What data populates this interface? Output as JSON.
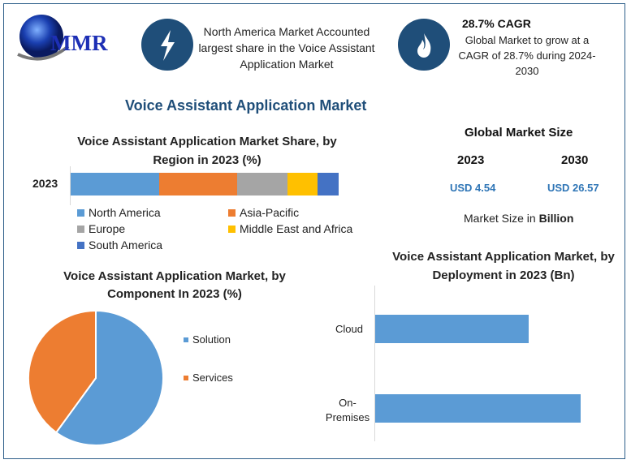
{
  "logo": {
    "text": "MMR"
  },
  "header": {
    "north_america_text": "North America Market Accounted largest share in the Voice Assistant Application Market",
    "cagr_title": "28.7% CAGR",
    "cagr_text": "Global Market to grow at a CAGR of 28.7% during 2024-2030",
    "icons": [
      "lightning-icon",
      "flame-icon"
    ]
  },
  "main_title": "Voice Assistant Application Market",
  "market_size": {
    "title": "Global Market Size",
    "year1": "2023",
    "year2": "2030",
    "value1": "USD 4.54",
    "value2": "USD 26.57",
    "note_prefix": "Market Size in ",
    "note_unit": "Billion"
  },
  "colors": {
    "accent": "#1f4e79",
    "value": "#2e75b6",
    "blue": "#5b9bd5",
    "orange": "#ed7d31",
    "gray": "#a5a5a5",
    "yellow": "#ffc000",
    "darkblue": "#4472c4"
  },
  "chart_data": [
    {
      "type": "bar",
      "orientation": "horizontal-stacked",
      "title": "Voice Assistant Application Market Share, by Region in 2023 (%)",
      "categories": [
        "2023"
      ],
      "series": [
        {
          "name": "North America",
          "values": [
            33
          ],
          "color": "#5b9bd5"
        },
        {
          "name": "Asia-Pacific",
          "values": [
            29
          ],
          "color": "#ed7d31"
        },
        {
          "name": "Europe",
          "values": [
            19
          ],
          "color": "#a5a5a5"
        },
        {
          "name": "Middle East and Africa",
          "values": [
            11
          ],
          "color": "#ffc000"
        },
        {
          "name": "South America",
          "values": [
            8
          ],
          "color": "#4472c4"
        }
      ],
      "legend": "bottom"
    },
    {
      "type": "pie",
      "title": "Voice Assistant Application Market, by Component In 2023 (%)",
      "categories": [
        "Solution",
        "Services"
      ],
      "values": [
        60,
        40
      ],
      "colors": [
        "#5b9bd5",
        "#ed7d31"
      ],
      "legend": "right"
    },
    {
      "type": "bar",
      "orientation": "horizontal",
      "title": "Voice Assistant Application Market, by Deployment in 2023 (Bn)",
      "categories": [
        "Cloud",
        "On-Premises"
      ],
      "values": [
        1.94,
        2.6
      ],
      "color": "#5b9bd5"
    }
  ]
}
